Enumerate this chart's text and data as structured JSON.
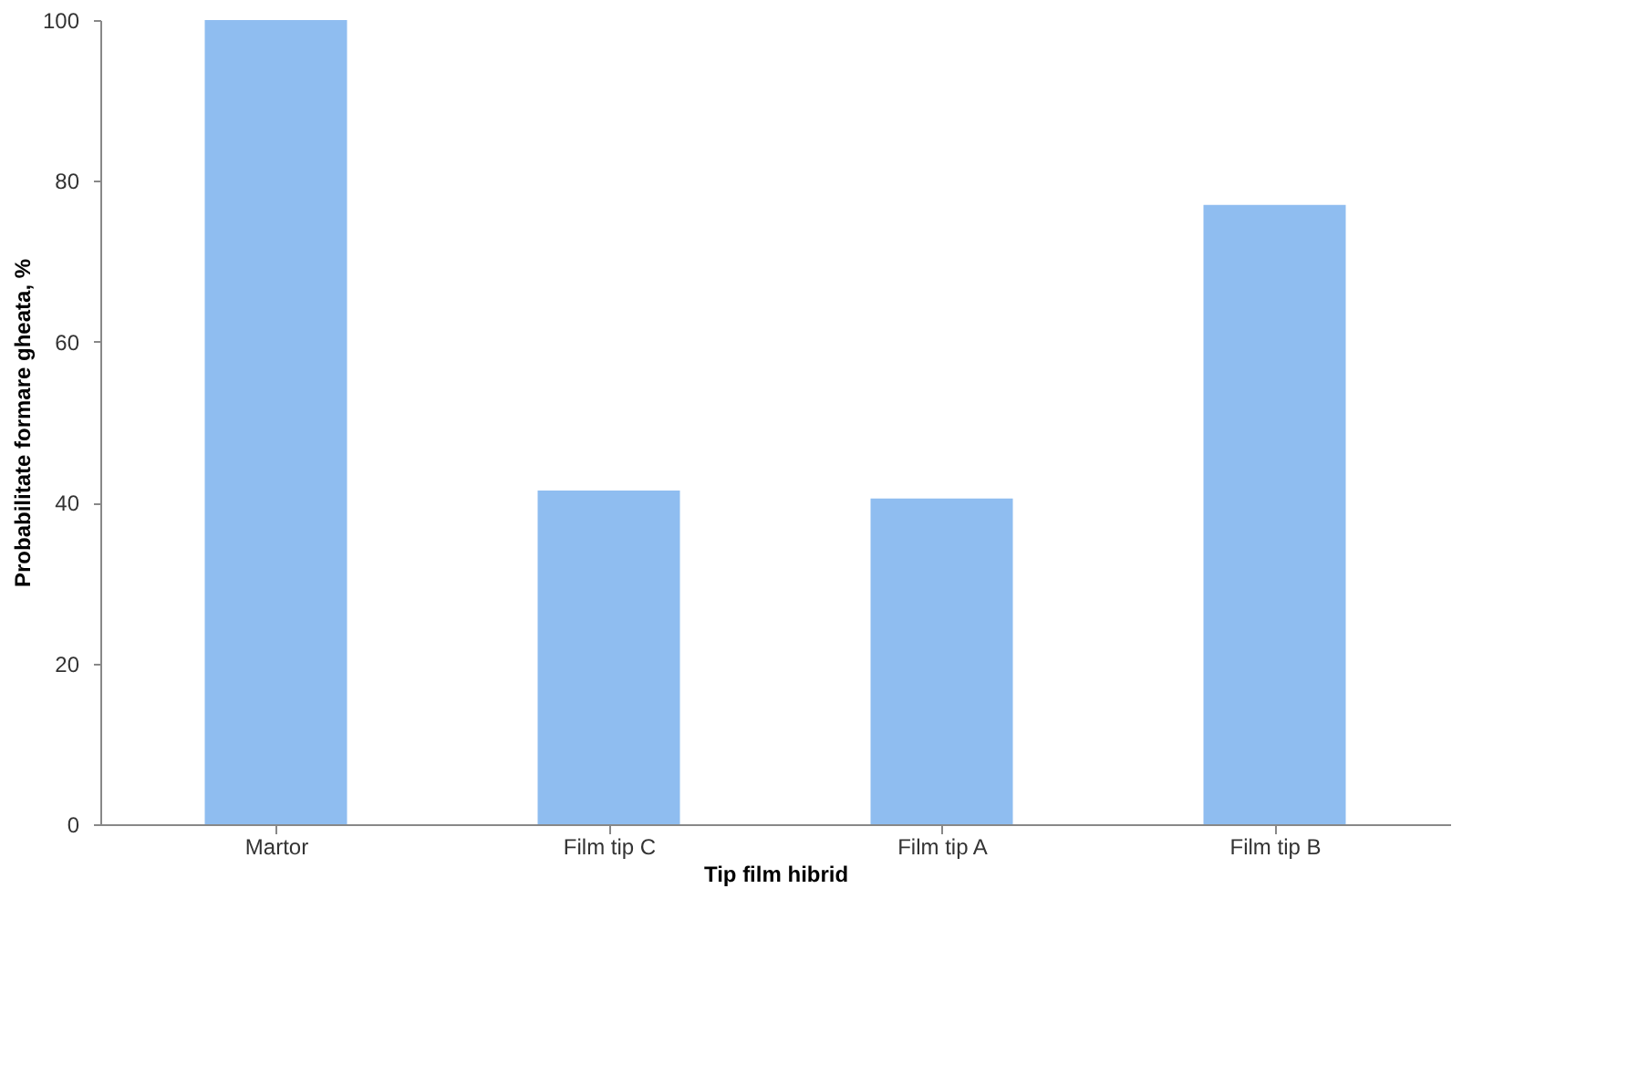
{
  "chart_data": {
    "type": "bar",
    "xlabel": "Tip film hibrid",
    "ylabel": "Probabilitate formare gheata, %",
    "categories": [
      "Martor",
      "Film tip C",
      "Film tip A",
      "Film tip B"
    ],
    "values": [
      100,
      41.5,
      40.5,
      77
    ],
    "color": "#8fbdf0",
    "ylim": [
      0,
      100
    ],
    "yticks": [
      0,
      20,
      40,
      60,
      80,
      100
    ],
    "grid": false
  }
}
